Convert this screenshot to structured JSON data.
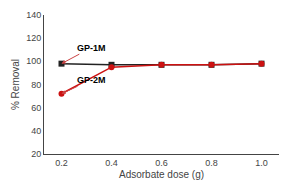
{
  "chart_data": {
    "type": "line",
    "x": [
      0.2,
      0.4,
      0.6,
      0.8,
      1.0
    ],
    "series": [
      {
        "color": "#222222",
        "marker": "square",
        "values": [
          98,
          97,
          97,
          97,
          98
        ]
      },
      {
        "color": "#cc1111",
        "marker": "circle",
        "values": [
          72,
          95,
          97,
          97,
          98
        ]
      }
    ],
    "annotations": [
      {
        "text": "GP-1M",
        "x": 0.2,
        "y": 98
      },
      {
        "text": "GP-2M",
        "x": 0.2,
        "y": 72
      }
    ],
    "xlabel": "Adsorbate dose (g)",
    "ylabel": "% Removal",
    "xlim": [
      0.13,
      1.07
    ],
    "ylim": [
      20,
      140
    ],
    "xticks": [
      0.2,
      0.4,
      0.6,
      0.8,
      {
        "value": 1.0,
        "label": "1.0"
      }
    ],
    "yticks": [
      20,
      40,
      60,
      80,
      100,
      120,
      140
    ],
    "grid": false
  }
}
